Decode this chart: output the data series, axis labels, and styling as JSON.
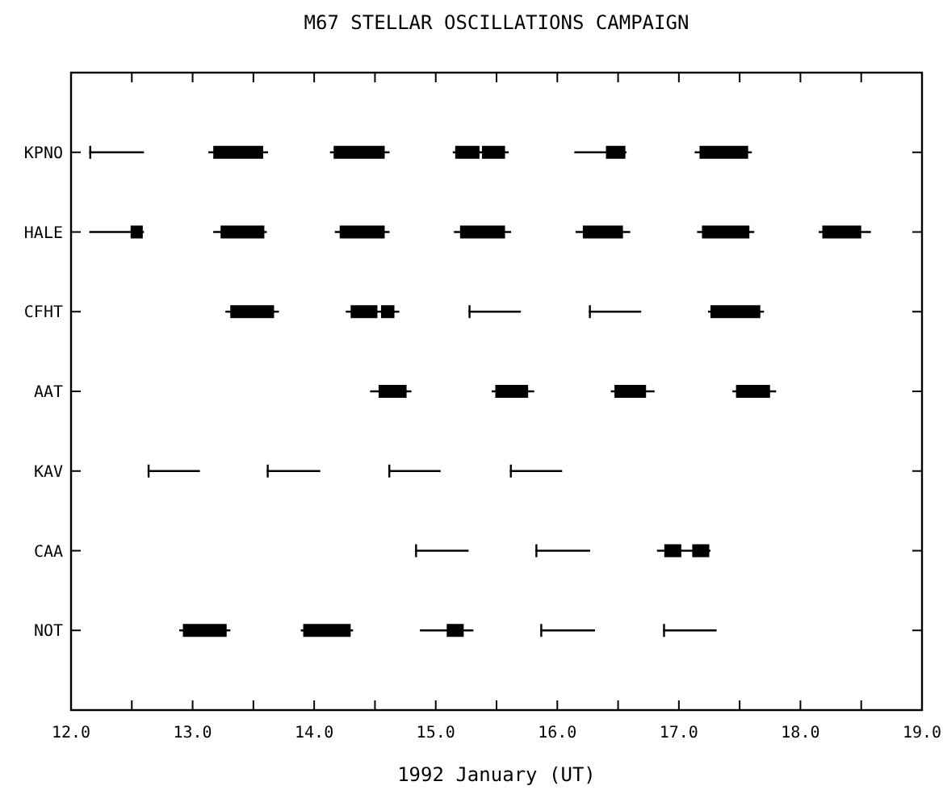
{
  "chart_data": {
    "type": "bar",
    "orientation": "horizontal",
    "title": "M67 STELLAR OSCILLATIONS CAMPAIGN",
    "xlabel": "1992 January (UT)",
    "categories": [
      "KPNO",
      "HALE",
      "CFHT",
      "AAT",
      "KAV",
      "CAA",
      "NOT"
    ],
    "xlim": [
      12,
      19
    ],
    "xticks": [
      {
        "value": 12,
        "label": "12.0"
      },
      {
        "value": 12.5,
        "label": null
      },
      {
        "value": 13,
        "label": "13.0"
      },
      {
        "value": 13.5,
        "label": null
      },
      {
        "value": 14,
        "label": "14.0"
      },
      {
        "value": 14.5,
        "label": null
      },
      {
        "value": 15,
        "label": "15.0"
      },
      {
        "value": 15.5,
        "label": null
      },
      {
        "value": 16,
        "label": "16.0"
      },
      {
        "value": 16.5,
        "label": null
      },
      {
        "value": 17,
        "label": "17.0"
      },
      {
        "value": 17.5,
        "label": null
      },
      {
        "value": 18,
        "label": "18.0"
      },
      {
        "value": 18.5,
        "label": null
      },
      {
        "value": 19,
        "label": "19.0"
      }
    ],
    "series": [
      {
        "color": "#000000",
        "base": [
          12.15,
          12.49,
          13.31,
          14.53,
          12.63,
          14.83,
          12.92
        ],
        "values": [
          0,
          0.1,
          0.36,
          0.23,
          0,
          0,
          0.36
        ],
        "errors": [
          [
            12.15,
            12.6
          ],
          [
            12.15,
            12.6
          ],
          [
            13.27,
            13.71
          ],
          [
            14.46,
            14.8
          ],
          [
            12.63,
            13.06
          ],
          [
            14.83,
            15.27
          ],
          [
            12.89,
            13.31
          ]
        ]
      },
      {
        "color": "#000000",
        "base": [
          13.17,
          13.23,
          14.3,
          15.49,
          13.61,
          15.82,
          13.91
        ],
        "values": [
          0.41,
          0.36,
          0.22,
          0.27,
          0,
          0,
          0.39
        ],
        "errors": [
          [
            13.13,
            13.62
          ],
          [
            13.17,
            13.61
          ],
          [
            14.26,
            14.7
          ],
          [
            15.46,
            15.81
          ],
          [
            13.61,
            14.05
          ],
          [
            15.82,
            16.27
          ],
          [
            13.89,
            14.32
          ]
        ]
      },
      {
        "color": "#000000",
        "base": [
          14.16,
          14.21,
          15.27,
          16.47,
          14.61,
          16.88,
          15.09
        ],
        "values": [
          0.42,
          0.37,
          0,
          0.26,
          0,
          0.14,
          0.14
        ],
        "errors": [
          [
            14.13,
            14.62
          ],
          [
            14.17,
            14.62
          ],
          [
            15.27,
            15.7
          ],
          [
            16.44,
            16.8
          ],
          [
            14.61,
            15.04
          ],
          [
            16.82,
            17.26
          ],
          [
            14.87,
            15.31
          ]
        ]
      },
      {
        "color": "#000000",
        "base": [
          15.16,
          15.2,
          16.26,
          17.47,
          15.61,
          null,
          15.86
        ],
        "values": [
          0.2,
          0.37,
          0,
          0.28,
          0,
          null,
          0
        ],
        "errors": [
          [
            15.14,
            15.6
          ],
          [
            15.15,
            15.62
          ],
          [
            16.26,
            16.69
          ],
          [
            17.44,
            17.8
          ],
          [
            15.61,
            16.04
          ],
          null,
          [
            15.86,
            16.31
          ]
        ]
      },
      {
        "color": "#000000",
        "base": [
          16.4,
          16.21,
          17.26,
          null,
          null,
          null,
          16.87
        ],
        "values": [
          0.16,
          0.33,
          0.41,
          null,
          null,
          null,
          0
        ],
        "errors": [
          [
            16.14,
            16.57
          ],
          [
            16.15,
            16.6
          ],
          [
            17.24,
            17.7
          ],
          null,
          null,
          null,
          [
            16.87,
            17.31
          ]
        ]
      },
      {
        "color": "#000000",
        "base": [
          17.17,
          17.19,
          null,
          null,
          null,
          null,
          null
        ],
        "values": [
          0.4,
          0.39,
          null,
          null,
          null,
          null,
          null
        ],
        "errors": [
          [
            17.13,
            17.6
          ],
          [
            17.15,
            17.62
          ],
          null,
          null,
          null,
          null,
          null
        ]
      },
      {
        "color": "#000000",
        "base": [
          null,
          18.18,
          null,
          null,
          null,
          null,
          null
        ],
        "values": [
          null,
          0.32,
          null,
          null,
          null,
          null,
          null
        ],
        "errors": [
          null,
          [
            18.15,
            18.58
          ],
          null,
          null,
          null,
          null,
          null
        ]
      },
      {
        "color": "#000000",
        "base": [
          15.38,
          null,
          14.55,
          null,
          null,
          17.11,
          null
        ],
        "values": [
          0.19,
          null,
          0.11,
          null,
          null,
          0.14,
          null
        ]
      }
    ]
  }
}
